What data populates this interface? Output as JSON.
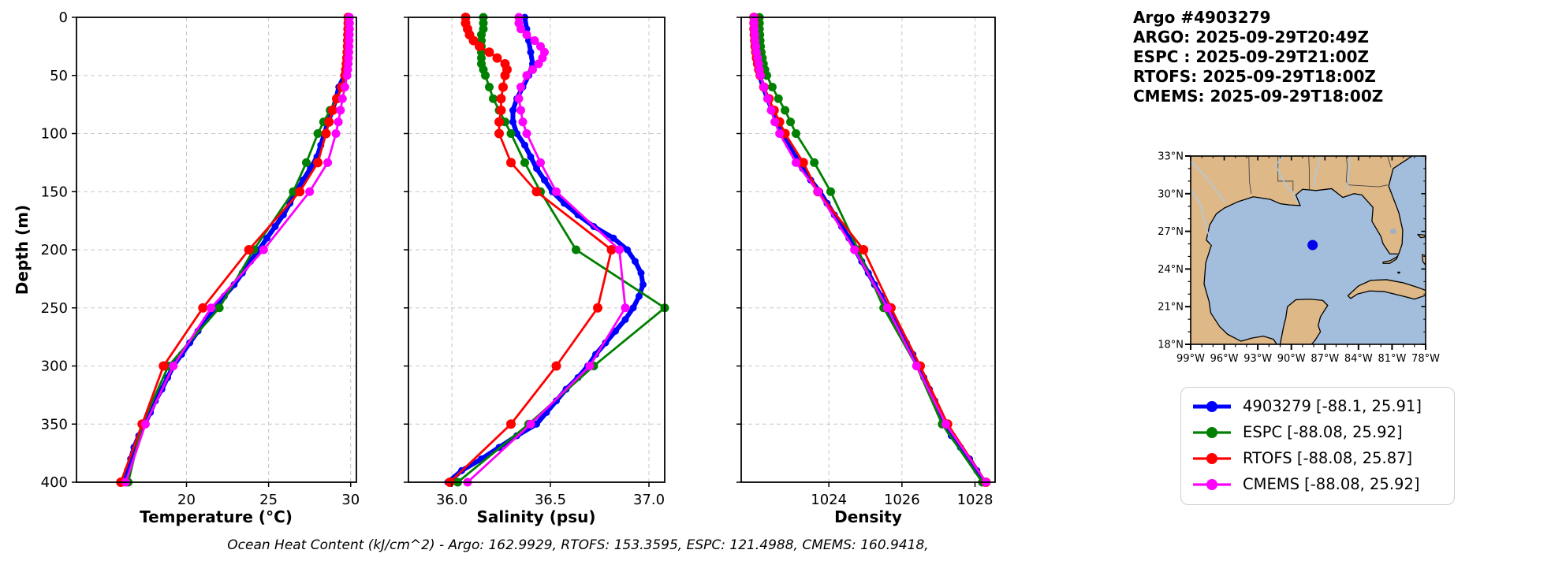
{
  "header": {
    "title": "Argo #4903279",
    "lines": [
      "ARGO: 2025-09-29T20:49Z",
      "ESPC : 2025-09-29T21:00Z",
      "RTOFS: 2025-09-29T18:00Z",
      "CMEMS: 2025-09-29T18:00Z"
    ]
  },
  "footer": {
    "ohc_note": "Ocean Heat Content (kJ/cm^2) - Argo: 162.9929,  RTOFS: 153.3595,  ESPC: 121.4988,  CMEMS: 160.9418,"
  },
  "legend": {
    "entries": [
      {
        "label": "4903279 [-88.1, 25.91]",
        "color": "#0000ff"
      },
      {
        "label": "ESPC [-88.08, 25.92]",
        "color": "#008000"
      },
      {
        "label": "RTOFS [-88.08, 25.87]",
        "color": "#ff0000"
      },
      {
        "label": "CMEMS [-88.08, 25.92]",
        "color": "#ff00ff"
      }
    ]
  },
  "map": {
    "land_color": "#deb887",
    "ocean_color": "#a3bedd",
    "river_color": "#a9cbe8",
    "float_marker": {
      "lon": -88.1,
      "lat": 25.91,
      "color": "#0000ee"
    },
    "lon_range": [
      -99,
      -78
    ],
    "lat_range": [
      18,
      33
    ],
    "lat_ticks": [
      {
        "v": 33,
        "label": "33°N"
      },
      {
        "v": 30,
        "label": "30°N"
      },
      {
        "v": 27,
        "label": "27°N"
      },
      {
        "v": 24,
        "label": "24°N"
      },
      {
        "v": 21,
        "label": "21°N"
      },
      {
        "v": 18,
        "label": "18°N"
      }
    ],
    "lon_ticks": [
      {
        "v": -99,
        "label": "99°W"
      },
      {
        "v": -96,
        "label": "96°W"
      },
      {
        "v": -93,
        "label": "93°W"
      },
      {
        "v": -90,
        "label": "90°W"
      },
      {
        "v": -87,
        "label": "87°W"
      },
      {
        "v": -84,
        "label": "84°W"
      },
      {
        "v": -81,
        "label": "81°W"
      },
      {
        "v": -78,
        "label": "78°W"
      }
    ]
  },
  "chart_data": [
    {
      "type": "line",
      "xlabel": "Temperature (°C)",
      "ylabel": "Depth (m)",
      "xlim": [
        13.3,
        30.35
      ],
      "ylim": [
        0,
        400
      ],
      "xticks": [
        20,
        25,
        30
      ],
      "xtick_labels": [
        "20",
        "25",
        "30"
      ],
      "yticks": [
        0,
        50,
        100,
        150,
        200,
        250,
        300,
        350,
        400
      ],
      "ytick_labels": [
        "0",
        "50",
        "100",
        "150",
        "200",
        "250",
        "300",
        "350",
        "400"
      ],
      "grid": true,
      "series": [
        {
          "name": "4903279",
          "color": "#0000ff",
          "line_width": 6,
          "marker_r": 4.5,
          "depths": [
            0,
            10,
            20,
            30,
            40,
            50,
            60,
            70,
            80,
            90,
            100,
            110,
            120,
            130,
            140,
            150,
            160,
            170,
            180,
            190,
            200,
            210,
            220,
            230,
            240,
            250,
            260,
            270,
            280,
            290,
            300,
            310,
            320,
            330,
            340,
            350,
            360,
            370,
            380,
            390,
            400
          ],
          "values": [
            29.95,
            29.95,
            29.94,
            29.93,
            29.9,
            29.62,
            29.28,
            29.1,
            28.9,
            28.62,
            28.4,
            28.18,
            27.95,
            27.55,
            27.1,
            26.68,
            26.3,
            25.9,
            25.4,
            24.9,
            24.42,
            23.9,
            23.4,
            22.9,
            22.3,
            21.7,
            21.2,
            20.7,
            20.2,
            19.7,
            19.2,
            18.85,
            18.5,
            18.1,
            17.8,
            17.45,
            17.1,
            16.8,
            16.6,
            16.4,
            16.2
          ]
        },
        {
          "name": "ESPC",
          "color": "#008000",
          "line_width": 2.8,
          "marker_r": 5.5,
          "depths": [
            0,
            5,
            10,
            15,
            20,
            25,
            30,
            35,
            40,
            45,
            50,
            60,
            70,
            80,
            90,
            100,
            125,
            150,
            200,
            250,
            300,
            350,
            400
          ],
          "values": [
            29.9,
            29.9,
            29.9,
            29.89,
            29.88,
            29.86,
            29.84,
            29.82,
            29.8,
            29.77,
            29.73,
            29.5,
            29.15,
            28.75,
            28.35,
            28.0,
            27.3,
            26.5,
            24.1,
            22.0,
            18.9,
            17.3,
            16.45
          ]
        },
        {
          "name": "RTOFS",
          "color": "#ff0000",
          "line_width": 2.8,
          "marker_r": 6,
          "depths": [
            0,
            5,
            10,
            15,
            20,
            25,
            30,
            35,
            40,
            45,
            50,
            60,
            70,
            80,
            90,
            100,
            125,
            150,
            200,
            250,
            300,
            350,
            400
          ],
          "values": [
            29.85,
            29.85,
            29.84,
            29.83,
            29.82,
            29.81,
            29.79,
            29.77,
            29.74,
            29.7,
            29.65,
            29.45,
            29.15,
            28.9,
            28.68,
            28.5,
            28.0,
            26.9,
            23.8,
            21.0,
            18.6,
            17.3,
            16.0
          ]
        },
        {
          "name": "CMEMS",
          "color": "#ff00ff",
          "line_width": 2.8,
          "marker_r": 5.5,
          "depths": [
            0,
            5,
            10,
            15,
            20,
            25,
            30,
            35,
            40,
            45,
            50,
            60,
            70,
            80,
            90,
            100,
            125,
            150,
            200,
            250,
            300,
            350,
            400
          ],
          "values": [
            29.93,
            29.93,
            29.93,
            29.92,
            29.91,
            29.9,
            29.89,
            29.87,
            29.85,
            29.82,
            29.78,
            29.65,
            29.5,
            29.38,
            29.25,
            29.1,
            28.6,
            27.5,
            24.7,
            21.5,
            19.2,
            17.5,
            16.3
          ]
        }
      ]
    },
    {
      "type": "line",
      "xlabel": "Salinity (psu)",
      "ylabel": "",
      "xlim": [
        35.78,
        37.08
      ],
      "ylim": [
        0,
        400
      ],
      "xticks": [
        36.0,
        36.5,
        37.0
      ],
      "xtick_labels": [
        "36.0",
        "36.5",
        "37.0"
      ],
      "yticks": [
        0,
        50,
        100,
        150,
        200,
        250,
        300,
        350,
        400
      ],
      "grid": true,
      "series": [
        {
          "name": "4903279",
          "color": "#0000ff",
          "line_width": 6,
          "marker_r": 4.5,
          "depths": [
            0,
            10,
            20,
            30,
            40,
            50,
            60,
            70,
            80,
            90,
            100,
            110,
            120,
            130,
            140,
            150,
            160,
            170,
            180,
            190,
            200,
            210,
            220,
            230,
            240,
            250,
            260,
            270,
            280,
            290,
            300,
            310,
            320,
            330,
            340,
            350,
            360,
            370,
            380,
            390,
            400
          ],
          "values": [
            36.37,
            36.38,
            36.39,
            36.4,
            36.41,
            36.39,
            36.36,
            36.33,
            36.31,
            36.31,
            36.33,
            36.37,
            36.4,
            36.43,
            36.47,
            36.51,
            36.57,
            36.64,
            36.72,
            36.82,
            36.89,
            36.93,
            36.96,
            36.97,
            36.95,
            36.92,
            36.88,
            36.83,
            36.78,
            36.73,
            36.69,
            36.64,
            36.58,
            36.53,
            36.48,
            36.43,
            36.33,
            36.24,
            36.15,
            36.05,
            35.98
          ]
        },
        {
          "name": "ESPC",
          "color": "#008000",
          "line_width": 2.8,
          "marker_r": 5.5,
          "depths": [
            0,
            5,
            10,
            15,
            20,
            25,
            30,
            35,
            40,
            45,
            50,
            60,
            70,
            80,
            90,
            100,
            125,
            150,
            200,
            250,
            300,
            350,
            400
          ],
          "values": [
            36.16,
            36.16,
            36.16,
            36.15,
            36.15,
            36.15,
            36.15,
            36.15,
            36.15,
            36.16,
            36.17,
            36.19,
            36.21,
            36.24,
            36.27,
            36.3,
            36.37,
            36.45,
            36.63,
            37.08,
            36.72,
            36.39,
            36.03
          ]
        },
        {
          "name": "RTOFS",
          "color": "#ff0000",
          "line_width": 2.8,
          "marker_r": 6,
          "depths": [
            0,
            5,
            10,
            15,
            20,
            25,
            30,
            35,
            40,
            45,
            50,
            60,
            70,
            80,
            90,
            100,
            125,
            150,
            200,
            250,
            300,
            350,
            400
          ],
          "values": [
            36.07,
            36.07,
            36.08,
            36.09,
            36.11,
            36.14,
            36.19,
            36.23,
            36.27,
            36.28,
            36.27,
            36.26,
            36.25,
            36.25,
            36.24,
            36.24,
            36.3,
            36.43,
            36.81,
            36.74,
            36.53,
            36.3,
            35.99
          ]
        },
        {
          "name": "CMEMS",
          "color": "#ff00ff",
          "line_width": 2.8,
          "marker_r": 5.5,
          "depths": [
            0,
            5,
            10,
            15,
            20,
            25,
            30,
            35,
            40,
            45,
            50,
            60,
            70,
            80,
            90,
            100,
            125,
            150,
            200,
            250,
            300,
            350,
            400
          ],
          "values": [
            36.34,
            36.34,
            36.35,
            36.38,
            36.42,
            36.45,
            36.47,
            36.46,
            36.44,
            36.41,
            36.38,
            36.35,
            36.34,
            36.35,
            36.36,
            36.38,
            36.45,
            36.53,
            36.85,
            36.88,
            36.7,
            36.4,
            36.08
          ]
        }
      ]
    },
    {
      "type": "line",
      "xlabel": "Density",
      "ylabel": "",
      "xlim": [
        1021.6,
        1028.55
      ],
      "ylim": [
        0,
        400
      ],
      "xticks": [
        1024,
        1026,
        1028
      ],
      "xtick_labels": [
        "1024",
        "1026",
        "1028"
      ],
      "yticks": [
        0,
        50,
        100,
        150,
        200,
        250,
        300,
        350,
        400
      ],
      "grid": true,
      "series": [
        {
          "name": "4903279",
          "color": "#0000ff",
          "line_width": 6,
          "marker_r": 4.5,
          "depths": [
            0,
            10,
            20,
            30,
            40,
            50,
            60,
            70,
            80,
            90,
            100,
            110,
            120,
            130,
            140,
            150,
            160,
            170,
            180,
            190,
            200,
            210,
            220,
            230,
            240,
            250,
            260,
            270,
            280,
            290,
            300,
            310,
            320,
            330,
            340,
            350,
            360,
            370,
            380,
            390,
            400
          ],
          "values": [
            1021.98,
            1021.99,
            1022.0,
            1022.01,
            1022.03,
            1022.1,
            1022.2,
            1022.32,
            1022.45,
            1022.58,
            1022.72,
            1022.9,
            1023.08,
            1023.28,
            1023.5,
            1023.75,
            1023.95,
            1024.15,
            1024.35,
            1024.55,
            1024.72,
            1024.9,
            1025.08,
            1025.25,
            1025.43,
            1025.6,
            1025.78,
            1025.95,
            1026.12,
            1026.3,
            1026.45,
            1026.6,
            1026.75,
            1026.9,
            1027.03,
            1027.15,
            1027.35,
            1027.6,
            1027.85,
            1028.05,
            1028.25
          ]
        },
        {
          "name": "ESPC",
          "color": "#008000",
          "line_width": 2.8,
          "marker_r": 5.5,
          "depths": [
            0,
            5,
            10,
            15,
            20,
            25,
            30,
            35,
            40,
            45,
            50,
            60,
            70,
            80,
            90,
            100,
            125,
            150,
            200,
            250,
            300,
            350,
            400
          ],
          "values": [
            1022.1,
            1022.1,
            1022.1,
            1022.11,
            1022.12,
            1022.13,
            1022.15,
            1022.18,
            1022.21,
            1022.25,
            1022.3,
            1022.45,
            1022.62,
            1022.8,
            1022.95,
            1023.1,
            1023.6,
            1024.05,
            1024.8,
            1025.5,
            1026.4,
            1027.1,
            1028.2
          ]
        },
        {
          "name": "RTOFS",
          "color": "#ff0000",
          "line_width": 2.8,
          "marker_r": 6,
          "depths": [
            0,
            5,
            10,
            15,
            20,
            25,
            30,
            35,
            40,
            45,
            50,
            60,
            70,
            80,
            90,
            100,
            125,
            150,
            200,
            250,
            300,
            350,
            400
          ],
          "values": [
            1021.95,
            1021.95,
            1021.95,
            1021.96,
            1021.97,
            1021.98,
            1022.0,
            1022.02,
            1022.05,
            1022.08,
            1022.12,
            1022.22,
            1022.36,
            1022.5,
            1022.65,
            1022.8,
            1023.3,
            1023.7,
            1024.95,
            1025.7,
            1026.5,
            1027.25,
            1028.3
          ]
        },
        {
          "name": "CMEMS",
          "color": "#ff00ff",
          "line_width": 2.8,
          "marker_r": 5.5,
          "depths": [
            0,
            5,
            10,
            15,
            20,
            25,
            30,
            35,
            40,
            45,
            50,
            60,
            70,
            80,
            90,
            100,
            125,
            150,
            200,
            250,
            300,
            350,
            400
          ],
          "values": [
            1021.95,
            1021.95,
            1021.96,
            1021.97,
            1021.98,
            1022.0,
            1022.02,
            1022.05,
            1022.08,
            1022.1,
            1022.13,
            1022.22,
            1022.32,
            1022.42,
            1022.52,
            1022.65,
            1023.1,
            1023.7,
            1024.7,
            1025.6,
            1026.4,
            1027.2,
            1028.3
          ]
        }
      ]
    }
  ]
}
